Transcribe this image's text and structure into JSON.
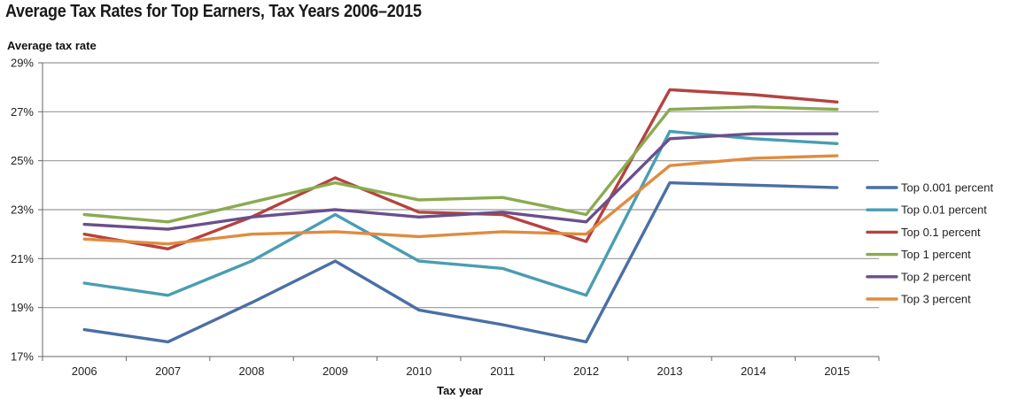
{
  "chart_data": {
    "type": "line",
    "title": "Average Tax Rates for Top Earners, Tax Years 2006–2015",
    "ylabel": "Average tax rate",
    "xlabel": "Tax year",
    "categories": [
      "2006",
      "2007",
      "2008",
      "2009",
      "2010",
      "2011",
      "2012",
      "2013",
      "2014",
      "2015"
    ],
    "y_ticks": [
      "17%",
      "19%",
      "21%",
      "23%",
      "25%",
      "27%",
      "29%"
    ],
    "ylim": [
      17,
      29
    ],
    "grid": "horizontal",
    "legend_position": "right",
    "series": [
      {
        "name": "Top 0.001 percent",
        "color": "#4a6fa5",
        "values": [
          18.1,
          17.6,
          19.2,
          20.9,
          18.9,
          18.3,
          17.6,
          24.1,
          24.0,
          23.9
        ]
      },
      {
        "name": "Top 0.01 percent",
        "color": "#4a9db3",
        "values": [
          20.0,
          19.5,
          20.9,
          22.8,
          20.9,
          20.6,
          19.5,
          26.2,
          25.9,
          25.7
        ]
      },
      {
        "name": "Top 0.1 percent",
        "color": "#b4433f",
        "values": [
          22.0,
          21.4,
          22.7,
          24.3,
          22.9,
          22.8,
          21.7,
          27.9,
          27.7,
          27.4
        ]
      },
      {
        "name": "Top 1 percent",
        "color": "#8aab4f",
        "values": [
          22.8,
          22.5,
          23.3,
          24.1,
          23.4,
          23.5,
          22.8,
          27.1,
          27.2,
          27.1
        ]
      },
      {
        "name": "Top 2 percent",
        "color": "#6a4f8c",
        "values": [
          22.4,
          22.2,
          22.7,
          23.0,
          22.7,
          22.9,
          22.5,
          25.9,
          26.1,
          26.1
        ]
      },
      {
        "name": "Top 3 percent",
        "color": "#e08b40",
        "values": [
          21.8,
          21.6,
          22.0,
          22.1,
          21.9,
          22.1,
          22.0,
          24.8,
          25.1,
          25.2
        ]
      }
    ]
  }
}
